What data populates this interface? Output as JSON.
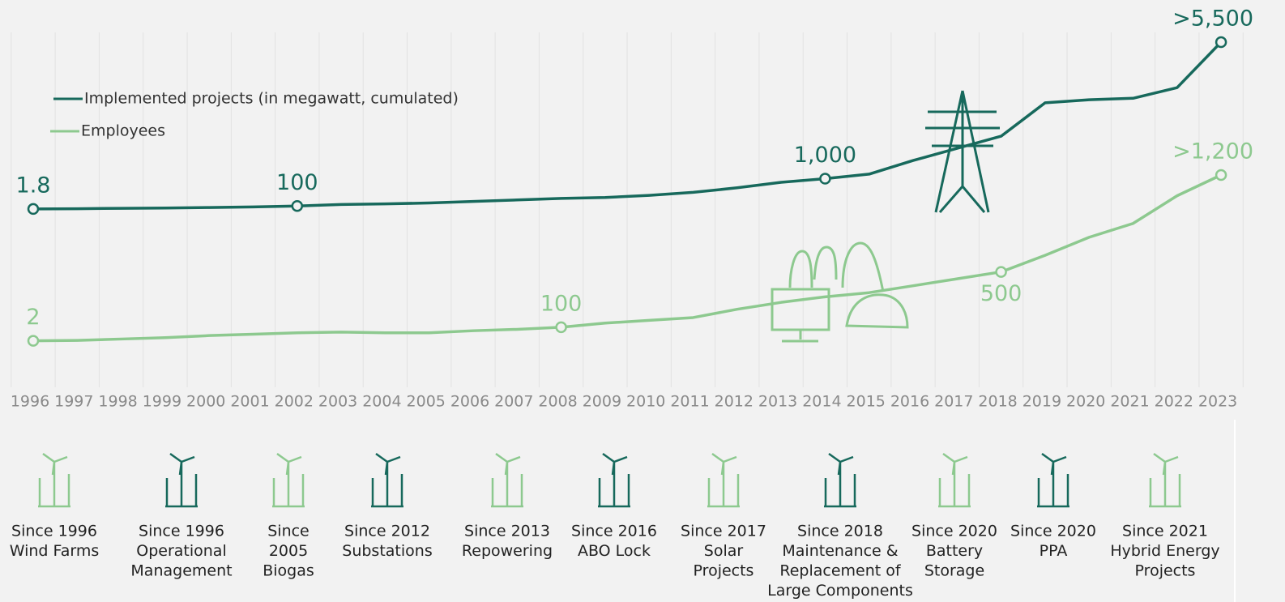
{
  "chart_data": {
    "type": "line",
    "categories": [
      "1996",
      "1997",
      "1998",
      "1999",
      "2000",
      "2001",
      "2002",
      "2003",
      "2004",
      "2005",
      "2006",
      "2007",
      "2008",
      "2009",
      "2010",
      "2011",
      "2012",
      "2013",
      "2014",
      "2015",
      "2016",
      "2017",
      "2018",
      "2019",
      "2020",
      "2021",
      "2022",
      "2023"
    ],
    "ylim": [
      0,
      5500
    ],
    "y2lim": [
      0,
      1200
    ],
    "grid": true,
    "legend": "upper-left",
    "series": [
      {
        "name": "Implemented projects (in megawatt, cumulated)",
        "color": "#17695c",
        "values": [
          1.8,
          10,
          25,
          35,
          50,
          70,
          100,
          150,
          170,
          200,
          250,
          300,
          350,
          380,
          450,
          550,
          700,
          880,
          1000,
          1150,
          1600,
          2000,
          2400,
          3500,
          3600,
          3650,
          4000,
          5500
        ],
        "value_labels": [
          "1.8",
          null,
          null,
          null,
          null,
          null,
          "100",
          null,
          null,
          null,
          null,
          null,
          null,
          null,
          null,
          null,
          null,
          null,
          "1,000",
          null,
          null,
          null,
          null,
          null,
          null,
          null,
          null,
          ">5,500"
        ]
      },
      {
        "name": "Employees",
        "color": "#8dc98f",
        "axis": "y2",
        "values": [
          2,
          5,
          15,
          25,
          40,
          50,
          60,
          65,
          60,
          60,
          75,
          85,
          100,
          130,
          150,
          170,
          230,
          280,
          320,
          350,
          400,
          450,
          500,
          620,
          750,
          850,
          1050,
          1200
        ],
        "value_labels": [
          "2",
          null,
          null,
          null,
          null,
          null,
          null,
          null,
          null,
          null,
          null,
          null,
          "100",
          null,
          null,
          null,
          null,
          null,
          null,
          null,
          null,
          null,
          "500",
          null,
          null,
          null,
          null,
          ">1,200"
        ]
      }
    ]
  },
  "milestones": [
    {
      "lines": [
        "Since 1996",
        "Wind Farms"
      ]
    },
    {
      "lines": [
        "Since 1996",
        "Operational",
        "Management"
      ]
    },
    {
      "lines": [
        "Since",
        "2005",
        "Biogas"
      ]
    },
    {
      "lines": [
        "Since 2012",
        "Substations"
      ]
    },
    {
      "lines": [
        "Since 2013",
        "Repowering"
      ]
    },
    {
      "lines": [
        "Since 2016",
        "ABO Lock"
      ]
    },
    {
      "lines": [
        "Since 2017",
        "Solar",
        "Projects"
      ]
    },
    {
      "lines": [
        "Since 2018",
        "Maintenance &",
        "Replacement of",
        "Large Components"
      ]
    },
    {
      "lines": [
        "Since 2020",
        "Battery",
        "Storage"
      ]
    },
    {
      "lines": [
        "Since 2020",
        "PPA"
      ]
    },
    {
      "lines": [
        "Since 2021",
        "Hybrid Energy",
        "Projects"
      ]
    }
  ]
}
